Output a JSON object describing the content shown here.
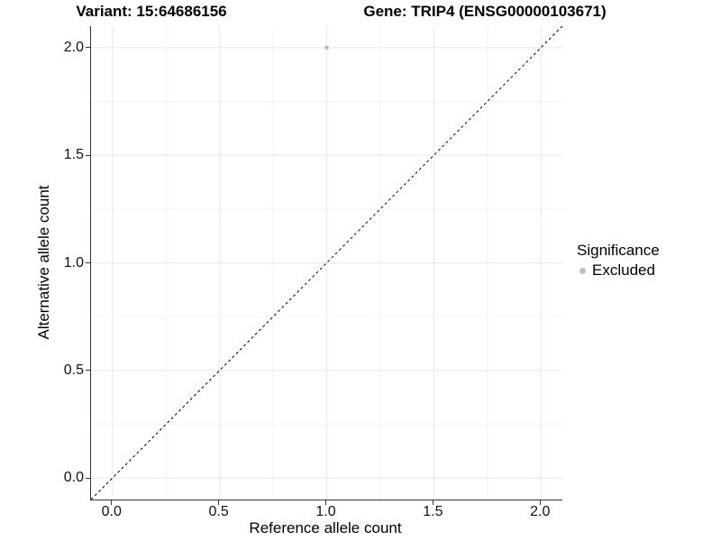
{
  "chart_data": {
    "type": "scatter",
    "title_variant": "Variant: 15:64686156",
    "title_gene": "Gene: TRIP4 (ENSG00000103671)",
    "xlabel": "Reference allele count",
    "ylabel": "Alternative allele count",
    "xlim": [
      -0.1,
      2.1
    ],
    "ylim": [
      -0.1,
      2.1
    ],
    "xticks": [
      0,
      0.5,
      1,
      1.5,
      2
    ],
    "xtick_labels": [
      "0.0",
      "0.5",
      "1.0",
      "1.5",
      "2.0"
    ],
    "yticks": [
      0,
      0.5,
      1,
      1.5,
      2
    ],
    "ytick_labels": [
      "0.0",
      "0.5",
      "1.0",
      "1.5",
      "2.0"
    ],
    "x_minor": [
      0.25,
      0.75,
      1.25,
      1.75
    ],
    "y_minor": [
      0.25,
      0.75,
      1.25,
      1.75
    ],
    "points": [
      {
        "x": 1.0,
        "y": 2.0,
        "series": "Excluded"
      }
    ],
    "reference_line": {
      "slope": 1,
      "intercept": 0,
      "style": "dashed",
      "color": "#000000"
    },
    "grid": true,
    "legend": {
      "title": "Significance",
      "position": "right",
      "items": [
        {
          "label": "Excluded",
          "color": "#bdbdbd"
        }
      ]
    },
    "colors": {
      "point": "#bdbdbd",
      "grid_major": "#e7e7e7",
      "grid_minor": "#f3f3f3",
      "axis_line": "#333333",
      "tick": "#333333",
      "text": "#111111"
    },
    "point_radius": 2.4,
    "legend_dot_radius": 3.5
  }
}
